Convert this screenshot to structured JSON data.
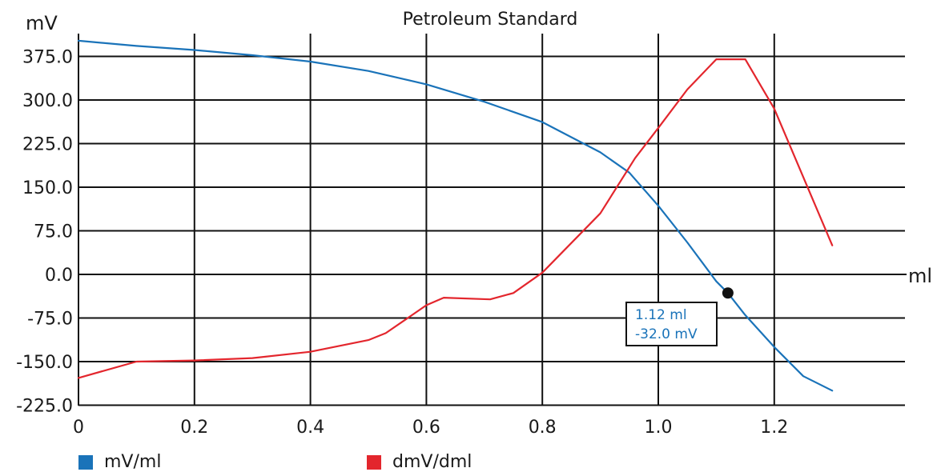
{
  "chart_data": {
    "type": "line",
    "title": "Petroleum Standard",
    "ylabel": "mV",
    "xlabel": "ml",
    "xlim": [
      0,
      1.42
    ],
    "ylim": [
      -225,
      412
    ],
    "x_ticks": [
      "0",
      "0.2",
      "0.4",
      "0.6",
      "0.8",
      "1.0",
      "1.2"
    ],
    "y_ticks": [
      "375.0",
      "300.0",
      "225.0",
      "150.0",
      "75.0",
      "0.0",
      "-75.0",
      "-150.0",
      "-225.0"
    ],
    "x_tick_values": [
      0,
      0.2,
      0.4,
      0.6,
      0.8,
      1.0,
      1.2
    ],
    "y_tick_values": [
      375,
      300,
      225,
      150,
      75,
      0,
      -75,
      -150,
      -225
    ],
    "grid": true,
    "legend_position": "bottom-left",
    "series": [
      {
        "name": "mV/ml",
        "color": "#1a73b9",
        "points": [
          [
            0,
            402
          ],
          [
            0.1,
            393
          ],
          [
            0.2,
            386
          ],
          [
            0.3,
            377
          ],
          [
            0.4,
            366
          ],
          [
            0.5,
            350
          ],
          [
            0.6,
            327
          ],
          [
            0.7,
            297
          ],
          [
            0.8,
            262
          ],
          [
            0.9,
            210
          ],
          [
            0.95,
            175
          ],
          [
            1.0,
            118
          ],
          [
            1.05,
            55
          ],
          [
            1.1,
            -12
          ],
          [
            1.12,
            -32
          ],
          [
            1.15,
            -70
          ],
          [
            1.2,
            -125
          ],
          [
            1.25,
            -175
          ],
          [
            1.3,
            -200
          ]
        ]
      },
      {
        "name": "dmV/dml",
        "color": "#e3262d",
        "points": [
          [
            0,
            -178
          ],
          [
            0.1,
            -150
          ],
          [
            0.2,
            -148
          ],
          [
            0.3,
            -144
          ],
          [
            0.4,
            -133
          ],
          [
            0.5,
            -113
          ],
          [
            0.53,
            -101
          ],
          [
            0.6,
            -53
          ],
          [
            0.63,
            -40
          ],
          [
            0.71,
            -43
          ],
          [
            0.75,
            -32
          ],
          [
            0.8,
            3
          ],
          [
            0.9,
            105
          ],
          [
            0.96,
            200
          ],
          [
            1.0,
            252
          ],
          [
            1.05,
            318
          ],
          [
            1.1,
            370
          ],
          [
            1.15,
            370
          ],
          [
            1.2,
            285
          ],
          [
            1.3,
            50
          ]
        ]
      }
    ],
    "annotation": {
      "x": 1.12,
      "y": -32.0,
      "line1": "1.12 ml",
      "line2": "-32.0 mV",
      "color": "#1a73b9"
    }
  }
}
